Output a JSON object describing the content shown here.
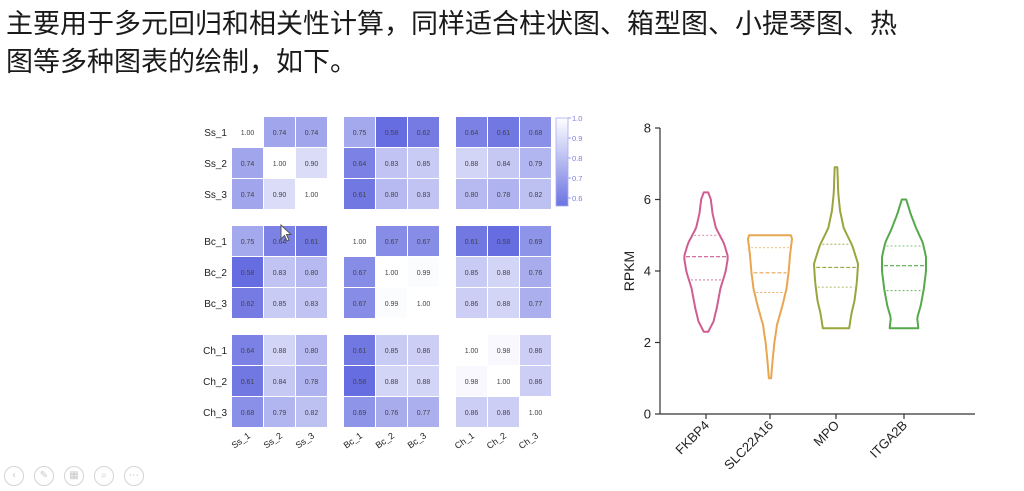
{
  "page": {
    "intro_line1": "主要用于多元回归和相关性计算，同样适合柱状图、箱型图、小提琴图、热",
    "intro_line2": "图等多种图表的绘制，如下。"
  },
  "controls": [
    {
      "name": "prev-control",
      "glyph": "‹"
    },
    {
      "name": "pen-control",
      "glyph": "✎"
    },
    {
      "name": "slides-control",
      "glyph": "▦"
    },
    {
      "name": "zoom-control",
      "glyph": "⌕"
    },
    {
      "name": "more-control",
      "glyph": "⋯"
    }
  ],
  "chart_data": [
    {
      "type": "heatmap",
      "rows": [
        "Ss_1",
        "Ss_2",
        "Ss_3",
        "Bc_1",
        "Bc_2",
        "Bc_3",
        "Ch_1",
        "Ch_2",
        "Ch_3"
      ],
      "cols": [
        "Ss_1",
        "Ss_2",
        "Ss_3",
        "Bc_1",
        "Bc_2",
        "Bc_3",
        "Ch_1",
        "Ch_2",
        "Ch_3"
      ],
      "values": [
        [
          "1.00",
          "0.74",
          "0.74",
          "0.75",
          "0.58",
          "0.62",
          "0.64",
          "0.61",
          "0.68"
        ],
        [
          "0.74",
          "1.00",
          "0.90",
          "0.64",
          "0.83",
          "0.85",
          "0.88",
          "0.84",
          "0.79"
        ],
        [
          "0.74",
          "0.90",
          "1.00",
          "0.61",
          "0.80",
          "0.83",
          "0.80",
          "0.78",
          "0.82"
        ],
        [
          "0.75",
          "0.64",
          "0.61",
          "1.00",
          "0.67",
          "0.67",
          "0.61",
          "0.58",
          "0.69"
        ],
        [
          "0.58",
          "0.83",
          "0.80",
          "0.67",
          "1.00",
          "0.99",
          "0.85",
          "0.88",
          "0.76"
        ],
        [
          "0.62",
          "0.85",
          "0.83",
          "0.67",
          "0.99",
          "1.00",
          "0.86",
          "0.88",
          "0.77"
        ],
        [
          "0.64",
          "0.88",
          "0.80",
          "0.61",
          "0.85",
          "0.86",
          "1.00",
          "0.98",
          "0.86"
        ],
        [
          "0.61",
          "0.84",
          "0.78",
          "0.58",
          "0.88",
          "0.88",
          "0.98",
          "1.00",
          "0.86"
        ],
        [
          "0.68",
          "0.79",
          "0.82",
          "0.69",
          "0.76",
          "0.77",
          "0.86",
          "0.86",
          "1.00"
        ]
      ],
      "groups": [
        3,
        3,
        3
      ],
      "color_range": [
        0.55,
        1.0
      ],
      "color_low": "#5b63de",
      "color_high": "#ffffff",
      "legend_ticks": [
        "1.0",
        "0.9",
        "0.8",
        "0.7",
        "0.6"
      ],
      "legend_tick_values": [
        1.0,
        0.9,
        0.8,
        0.7,
        0.6
      ],
      "legend_placement": "top-right"
    },
    {
      "type": "violin",
      "categories": [
        "FKBP4",
        "SLC22A16",
        "MPO",
        "ITGA2B"
      ],
      "colors": [
        "#cf5d92",
        "#e8a650",
        "#9aa53d",
        "#55a94c"
      ],
      "ylabel": "RPKM",
      "ylim": [
        0,
        8
      ],
      "yticks": [
        "0",
        "2",
        "4",
        "6",
        "8"
      ],
      "ytick_values": [
        0,
        2,
        4,
        6,
        8
      ],
      "series": [
        {
          "category": "FKBP4",
          "min": 2.3,
          "max": 6.2,
          "q1": 3.75,
          "median": 4.4,
          "q3": 5.0,
          "profile": [
            [
              2.3,
              0.1
            ],
            [
              2.6,
              0.35
            ],
            [
              3.0,
              0.5
            ],
            [
              3.5,
              0.65
            ],
            [
              4.0,
              0.9
            ],
            [
              4.4,
              1.0
            ],
            [
              4.8,
              0.8
            ],
            [
              5.2,
              0.45
            ],
            [
              5.6,
              0.3
            ],
            [
              6.0,
              0.22
            ],
            [
              6.2,
              0.1
            ]
          ]
        },
        {
          "category": "SLC22A16",
          "min": 1.0,
          "max": 5.0,
          "q1": 3.4,
          "median": 3.95,
          "q3": 4.65,
          "profile": [
            [
              1.0,
              0.05
            ],
            [
              1.5,
              0.12
            ],
            [
              2.0,
              0.2
            ],
            [
              2.5,
              0.32
            ],
            [
              3.0,
              0.55
            ],
            [
              3.5,
              0.75
            ],
            [
              4.0,
              0.85
            ],
            [
              4.5,
              0.92
            ],
            [
              4.9,
              1.0
            ],
            [
              5.0,
              0.95
            ]
          ]
        },
        {
          "category": "MPO",
          "min": 2.4,
          "max": 6.9,
          "q1": 3.55,
          "median": 4.1,
          "q3": 4.75,
          "profile": [
            [
              2.4,
              0.6
            ],
            [
              2.8,
              0.7
            ],
            [
              3.2,
              0.85
            ],
            [
              3.7,
              0.95
            ],
            [
              4.2,
              1.0
            ],
            [
              4.7,
              0.75
            ],
            [
              5.2,
              0.35
            ],
            [
              5.7,
              0.18
            ],
            [
              6.2,
              0.1
            ],
            [
              6.6,
              0.08
            ],
            [
              6.9,
              0.06
            ]
          ]
        },
        {
          "category": "ITGA2B",
          "min": 2.4,
          "max": 6.0,
          "q1": 3.45,
          "median": 4.15,
          "q3": 4.7,
          "profile": [
            [
              2.4,
              0.65
            ],
            [
              2.7,
              0.6
            ],
            [
              3.0,
              0.75
            ],
            [
              3.5,
              0.9
            ],
            [
              4.0,
              1.0
            ],
            [
              4.4,
              1.0
            ],
            [
              4.8,
              0.85
            ],
            [
              5.2,
              0.55
            ],
            [
              5.6,
              0.3
            ],
            [
              6.0,
              0.1
            ]
          ]
        }
      ]
    }
  ]
}
